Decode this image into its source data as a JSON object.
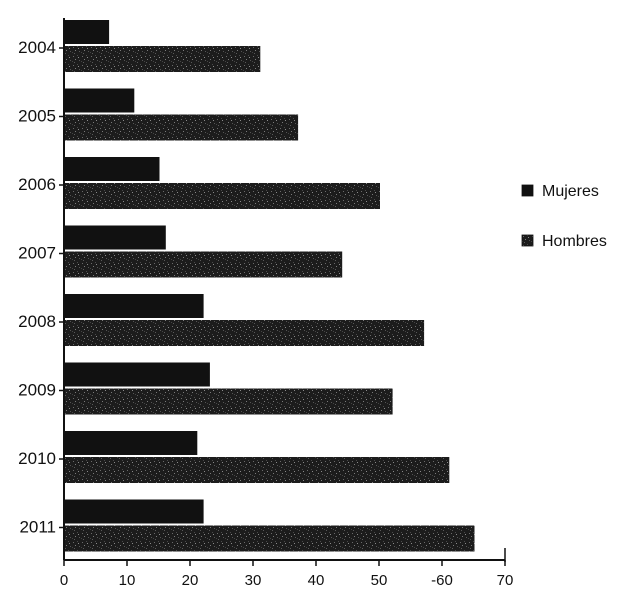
{
  "chart_data": {
    "type": "bar",
    "orientation": "horizontal",
    "title": "",
    "xlabel": "",
    "ylabel": "",
    "categories": [
      "2004",
      "2005",
      "2006",
      "2007",
      "2008",
      "2009",
      "2010",
      "2011"
    ],
    "series": [
      {
        "name": "Mujeres",
        "color": "#111111",
        "pattern": "solid",
        "values": [
          7,
          11,
          15,
          16,
          22,
          23,
          21,
          22
        ]
      },
      {
        "name": "Hombres",
        "color": "#1e1e1e",
        "pattern": "speckled",
        "values": [
          31,
          37,
          50,
          44,
          57,
          52,
          61,
          65
        ]
      }
    ],
    "xlim": [
      0,
      70
    ],
    "xticks": [
      0,
      10,
      20,
      30,
      40,
      50,
      60,
      70
    ],
    "xtick_labels": [
      "0",
      "10",
      "20",
      "30",
      "40",
      "50",
      "-60",
      "70"
    ],
    "grid": false,
    "legend_position": "right"
  }
}
